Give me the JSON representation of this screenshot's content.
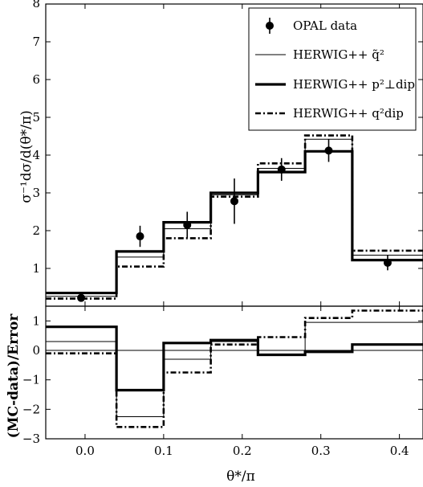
{
  "chart_data": [
    {
      "type": "step+errorbar",
      "panel": "main",
      "xlabel": "θ*/π",
      "ylabel": "σ⁻¹dσ/d(θ*/π)",
      "xlim": [
        -0.05,
        0.43
      ],
      "ylim": [
        0,
        8
      ],
      "yticks": [
        "1",
        "2",
        "3",
        "4",
        "5",
        "6",
        "7"
      ],
      "bin_edges": [
        -0.05,
        0.04,
        0.1,
        0.16,
        0.22,
        0.28,
        0.34,
        0.43
      ],
      "legend": {
        "placement": "top-right",
        "entries": [
          "OPAL data",
          "HERWIG++ q̃²",
          "HERWIG++ p²⊥dip",
          "HERWIG++ q²dip"
        ]
      },
      "data_points": {
        "name": "OPAL data",
        "x": [
          -0.005,
          0.07,
          0.13,
          0.19,
          0.25,
          0.31,
          0.385
        ],
        "y": [
          0.22,
          1.85,
          2.15,
          2.78,
          3.62,
          4.12,
          1.15
        ],
        "yerr": [
          0.05,
          0.28,
          0.35,
          0.6,
          0.3,
          0.3,
          0.2
        ]
      },
      "series": [
        {
          "name": "HERWIG++ q̃²",
          "style": "thin",
          "values": [
            0.26,
            1.3,
            2.05,
            2.95,
            3.65,
            4.42,
            1.35
          ]
        },
        {
          "name": "HERWIG++ p²⊥dip",
          "style": "thick",
          "values": [
            0.35,
            1.45,
            2.22,
            3.0,
            3.55,
            4.1,
            1.22
          ]
        },
        {
          "name": "HERWIG++ q²dip",
          "style": "dashdot",
          "values": [
            0.2,
            1.05,
            1.8,
            2.9,
            3.78,
            4.52,
            1.47
          ]
        }
      ]
    },
    {
      "type": "step",
      "panel": "ratio",
      "xlabel": "θ*/π",
      "ylabel": "(MC-data)/Error",
      "xlim": [
        -0.05,
        0.43
      ],
      "ylim": [
        -3,
        1.5
      ],
      "xticks": [
        "0.0",
        "0.1",
        "0.2",
        "0.3",
        "0.4"
      ],
      "yticks": [
        "1",
        "0",
        "−1",
        "−2",
        "−3"
      ],
      "bin_edges": [
        -0.05,
        0.04,
        0.1,
        0.16,
        0.22,
        0.28,
        0.34,
        0.43
      ],
      "series": [
        {
          "name": "HERWIG++ q̃²",
          "style": "thin",
          "values": [
            0.3,
            -2.25,
            -0.3,
            0.3,
            0.0,
            0.95,
            0.95
          ]
        },
        {
          "name": "HERWIG++ p²⊥dip",
          "style": "thick",
          "values": [
            0.8,
            -1.35,
            0.25,
            0.35,
            -0.15,
            -0.05,
            0.2
          ]
        },
        {
          "name": "HERWIG++ q²dip",
          "style": "dashdot",
          "values": [
            -0.1,
            -2.6,
            -0.75,
            0.2,
            0.45,
            1.1,
            1.35
          ]
        }
      ]
    }
  ],
  "labels": {
    "main_ylabel": "σ⁻¹dσ/d(θ*/π)",
    "ratio_ylabel": "(MC-data)/Error",
    "xlabel": "θ*/π",
    "top_tick": "8"
  }
}
